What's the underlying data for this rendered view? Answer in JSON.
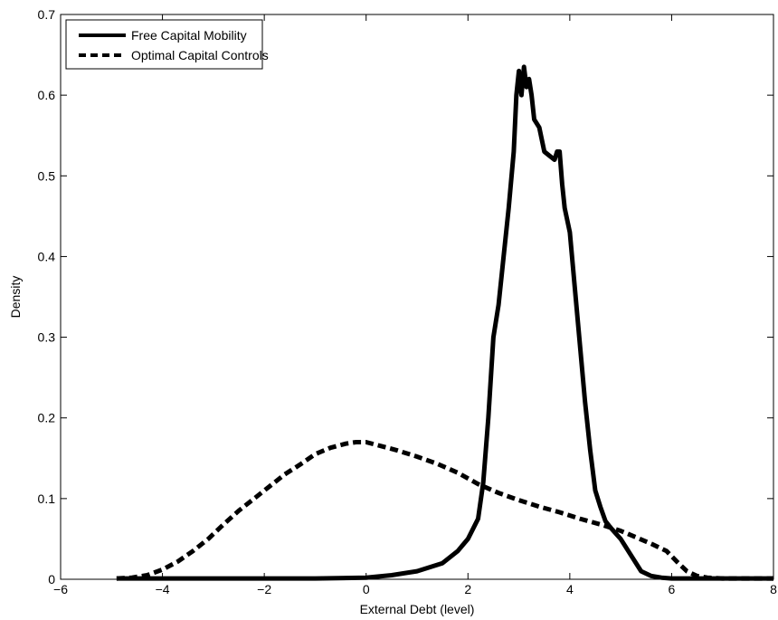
{
  "chart_data": {
    "type": "line",
    "title": "",
    "xlabel": "External Debt (level)",
    "ylabel": "Density",
    "xlim": [
      -6,
      8
    ],
    "ylim": [
      0,
      0.7
    ],
    "xticks": [
      -6,
      -4,
      -2,
      0,
      2,
      4,
      6,
      8
    ],
    "xtick_labels": [
      "−6",
      "−4",
      "−2",
      "0",
      "2",
      "4",
      "6",
      "8"
    ],
    "yticks": [
      0,
      0.1,
      0.2,
      0.3,
      0.4,
      0.5,
      0.6,
      0.7
    ],
    "ytick_labels": [
      "0",
      "0.1",
      "0.2",
      "0.3",
      "0.4",
      "0.5",
      "0.6",
      "0.7"
    ],
    "grid": false,
    "legend_position": "top-left",
    "series": [
      {
        "name": "Free Capital Mobility",
        "style": "solid",
        "color": "#000000",
        "x": [
          -4.9,
          -3,
          -1,
          0,
          0.5,
          1,
          1.5,
          1.8,
          2.0,
          2.2,
          2.3,
          2.4,
          2.5,
          2.6,
          2.7,
          2.8,
          2.9,
          2.95,
          3.0,
          3.05,
          3.1,
          3.15,
          3.2,
          3.25,
          3.3,
          3.4,
          3.5,
          3.6,
          3.7,
          3.75,
          3.8,
          3.85,
          3.9,
          4.0,
          4.1,
          4.2,
          4.3,
          4.4,
          4.5,
          4.6,
          4.7,
          4.8,
          5.0,
          5.2,
          5.4,
          5.6,
          5.8,
          6.0,
          6.5,
          7,
          8
        ],
        "y": [
          0.001,
          0.001,
          0.001,
          0.002,
          0.005,
          0.01,
          0.02,
          0.035,
          0.05,
          0.075,
          0.12,
          0.2,
          0.3,
          0.34,
          0.4,
          0.46,
          0.53,
          0.6,
          0.63,
          0.6,
          0.635,
          0.61,
          0.62,
          0.6,
          0.57,
          0.56,
          0.53,
          0.525,
          0.52,
          0.53,
          0.53,
          0.49,
          0.46,
          0.43,
          0.36,
          0.29,
          0.22,
          0.16,
          0.11,
          0.09,
          0.072,
          0.064,
          0.05,
          0.03,
          0.01,
          0.004,
          0.002,
          0.001,
          0.001,
          0.001,
          0.001
        ]
      },
      {
        "name": "Optimal Capital Controls",
        "style": "dashed",
        "color": "#000000",
        "x": [
          -4.9,
          -4.6,
          -4.3,
          -4.0,
          -3.7,
          -3.4,
          -3.1,
          -2.8,
          -2.5,
          -2.2,
          -1.9,
          -1.6,
          -1.3,
          -1.0,
          -0.7,
          -0.4,
          -0.2,
          0,
          0.3,
          0.6,
          1.0,
          1.4,
          1.8,
          2.2,
          2.6,
          3.0,
          3.4,
          3.8,
          4.2,
          4.6,
          5.0,
          5.3,
          5.6,
          5.9,
          6.1,
          6.3,
          6.5,
          6.7,
          7.0,
          7.5,
          8.0
        ],
        "y": [
          0.001,
          0.002,
          0.005,
          0.012,
          0.022,
          0.035,
          0.05,
          0.068,
          0.085,
          0.1,
          0.115,
          0.13,
          0.142,
          0.155,
          0.163,
          0.168,
          0.17,
          0.17,
          0.165,
          0.16,
          0.152,
          0.143,
          0.132,
          0.118,
          0.107,
          0.098,
          0.09,
          0.083,
          0.075,
          0.068,
          0.06,
          0.052,
          0.044,
          0.035,
          0.022,
          0.01,
          0.004,
          0.002,
          0.001,
          0.001,
          0.001
        ]
      }
    ]
  }
}
